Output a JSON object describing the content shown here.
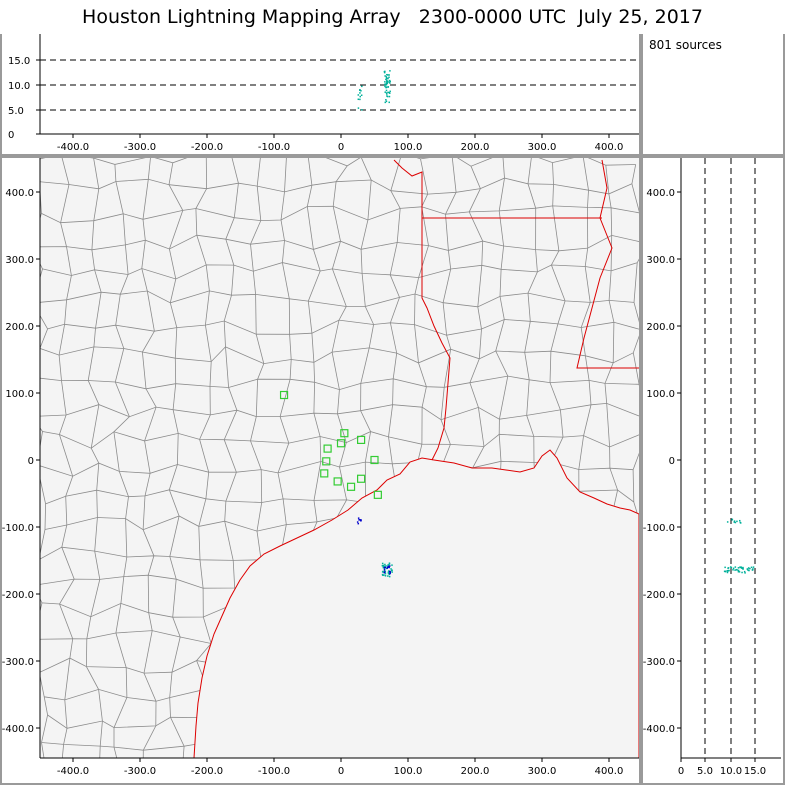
{
  "title": "Houston Lightning Mapping Array   2300-0000 UTC  July 25, 2017",
  "sources_text": "801 sources",
  "horizontal_ticks": [
    "-400.0",
    "-300.0",
    "-200.0",
    "-100.0",
    "0",
    "100.0",
    "200.0",
    "300.0",
    "400.0"
  ],
  "vertical_ticks": [
    "400.0",
    "300.0",
    "200.0",
    "100.0",
    "0",
    "-100.0",
    "-200.0",
    "-300.0",
    "-400.0"
  ],
  "altitude_ticks": [
    "0",
    "5.0",
    "10.0",
    "15.0"
  ],
  "colors": {
    "background": "#9a9a9a",
    "map_fill": "#f4f4f4",
    "county_lines": "#8c8c8c",
    "state_and_coast_lines": "#dd0000",
    "stations": "#33cc33",
    "sources_low": "#0000cc",
    "sources_high": "#00c8a0"
  }
}
